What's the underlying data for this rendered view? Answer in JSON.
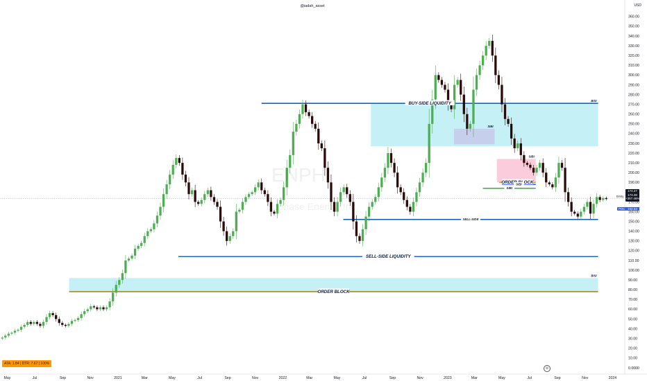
{
  "header": {
    "attribution": "@iadah_asset",
    "currency": "USD"
  },
  "watermark": {
    "ticker": "ENPH",
    "company": "Enphase Energy, Inc."
  },
  "indicator_badge": "ATA: 1.84 | DTR: 7.67 | 100%",
  "price_tag": {
    "symbol": "174.27",
    "price": "173.38",
    "change": "+357.46%",
    "time": "4:21h"
  },
  "entry_label": "Entry",
  "poc_tag": {
    "label": "POC",
    "value": "152.63"
  },
  "chart_data": {
    "type": "candlestick",
    "title": "",
    "y_axis": {
      "position": "right",
      "ticks": [
        0,
        10,
        20,
        30,
        40,
        50,
        60,
        70,
        80,
        90,
        100,
        110,
        120,
        130,
        140,
        150,
        160,
        170,
        180,
        190,
        200,
        210,
        220,
        230,
        240,
        250,
        260,
        270,
        280,
        290,
        300,
        310,
        320,
        330,
        340,
        350,
        360
      ],
      "tick_labels": [
        "0.0000",
        "10.00",
        "20.00",
        "30.00",
        "40.00",
        "50.00",
        "60.00",
        "70.00",
        "80.00",
        "90.00",
        "100.00",
        "110.00",
        "120.00",
        "130.00",
        "140.00",
        "150.00",
        "160.00",
        "170.00",
        "180.00",
        "190.00",
        "200.00",
        "210.00",
        "220.00",
        "230.00",
        "240.00",
        "250.00",
        "260.00",
        "270.00",
        "280.00",
        "290.00",
        "300.00",
        "310.00",
        "320.00",
        "330.00",
        "340.00",
        "350.00",
        "360.00"
      ],
      "range": [
        -5,
        367
      ]
    },
    "x_axis": {
      "range": [
        "2020-04-15",
        "2024-01-25"
      ],
      "ticks": [
        {
          "date": "2020-05-01",
          "label": "May"
        },
        {
          "date": "2020-07-01",
          "label": "Jul"
        },
        {
          "date": "2020-09-01",
          "label": "Sep"
        },
        {
          "date": "2020-11-01",
          "label": "Nov"
        },
        {
          "date": "2021-01-01",
          "label": "2021"
        },
        {
          "date": "2021-03-01",
          "label": "Mar"
        },
        {
          "date": "2021-05-01",
          "label": "May"
        },
        {
          "date": "2021-07-01",
          "label": "Jul"
        },
        {
          "date": "2021-09-01",
          "label": "Sep"
        },
        {
          "date": "2021-11-01",
          "label": "Nov"
        },
        {
          "date": "2022-01-01",
          "label": "2022"
        },
        {
          "date": "2022-03-01",
          "label": "Mar"
        },
        {
          "date": "2022-05-01",
          "label": "May"
        },
        {
          "date": "2022-07-01",
          "label": "Jul"
        },
        {
          "date": "2022-09-01",
          "label": "Sep"
        },
        {
          "date": "2022-11-01",
          "label": "Nov"
        },
        {
          "date": "2023-01-01",
          "label": "2023"
        },
        {
          "date": "2023-03-01",
          "label": "Mar"
        },
        {
          "date": "2023-05-01",
          "label": "May"
        },
        {
          "date": "2023-07-01",
          "label": "Jul"
        },
        {
          "date": "2023-09-01",
          "label": "Sep"
        },
        {
          "date": "2023-11-01",
          "label": "Nov"
        },
        {
          "date": "2024-01-01",
          "label": "2024"
        }
      ]
    },
    "candle_interval": "1 week",
    "close_series": {
      "start": "2020-04-20",
      "closes": [
        31,
        33,
        35,
        36,
        38,
        39,
        42,
        44,
        47,
        45,
        47,
        45,
        43,
        47,
        52,
        56,
        54,
        50,
        46,
        44,
        43,
        45,
        48,
        49,
        51,
        55,
        58,
        60,
        63,
        62,
        60,
        62,
        60,
        62,
        68,
        77,
        85,
        90,
        97,
        110,
        112,
        115,
        122,
        125,
        128,
        135,
        140,
        142,
        148,
        156,
        165,
        178,
        188,
        198,
        208,
        215,
        210,
        198,
        190,
        178,
        182,
        170,
        168,
        172,
        178,
        182,
        175,
        170,
        165,
        150,
        140,
        130,
        135,
        140,
        160,
        162,
        170,
        175,
        178,
        180,
        185,
        190,
        182,
        178,
        170,
        160,
        158,
        168,
        172,
        185,
        205,
        218,
        242,
        250,
        260,
        270,
        262,
        258,
        250,
        245,
        230,
        225,
        205,
        190,
        170,
        160,
        170,
        180,
        185,
        178,
        170,
        150,
        135,
        130,
        142,
        155,
        165,
        170,
        175,
        185,
        195,
        205,
        220,
        210,
        200,
        185,
        180,
        172,
        165,
        160,
        170,
        180,
        190,
        200,
        210,
        250,
        275,
        300,
        295,
        290,
        285,
        270,
        265,
        290,
        295,
        280,
        260,
        245,
        250,
        285,
        300,
        310,
        320,
        330,
        335,
        320,
        300,
        290,
        270,
        255,
        250,
        235,
        225,
        230,
        218,
        210,
        208,
        205,
        200,
        205,
        210,
        200,
        190,
        188,
        185,
        195,
        210,
        205,
        180,
        170,
        160,
        158,
        155,
        160,
        165,
        170,
        158,
        168,
        175,
        172,
        174,
        173
      ]
    },
    "annotations": [
      {
        "label": "BUY-SIDE LIQUIDITY",
        "type": "line",
        "y": 271,
        "from": "2021-11-15",
        "to": "2023-11-30",
        "color": "#1565c0"
      },
      {
        "label": "SELL-SIDE LIQUIDITY",
        "type": "line",
        "y": 114,
        "from": "2021-05-15",
        "to": "2023-11-30",
        "color": "#1565c0"
      },
      {
        "label": "SELL-SIDE",
        "type": "line",
        "y": 152,
        "from": "2022-05-15",
        "to": "2023-11-30",
        "color": "#1565c0"
      },
      {
        "label": "BISI",
        "type": "zone",
        "y": [
          227,
          271
        ],
        "from": "2022-07-15",
        "to": "2023-11-30",
        "color": "#b2ebf2"
      },
      {
        "label": "BISI",
        "type": "zone",
        "y": [
          78,
          92
        ],
        "from": "2020-09-15",
        "to": "2023-11-30",
        "color": "#b2ebf2"
      },
      {
        "label": "ORDER BLOCK",
        "type": "line",
        "y": 78,
        "from": "2020-09-15",
        "to": "2023-11-30",
        "color": "#b8860b"
      },
      {
        "label": "SIBI",
        "type": "zone",
        "y": [
          229,
          245
        ],
        "from": "2023-01-15",
        "to": "2023-04-15",
        "color": "#c5c6e8"
      },
      {
        "label": "SIBI",
        "type": "zone",
        "y": [
          190,
          214
        ],
        "from": "2023-04-20",
        "to": "2023-07-15",
        "color": "#f8bbd0"
      },
      {
        "label": "ORDER BLOCK",
        "type": "line",
        "y": 190,
        "from": "2023-04-25",
        "to": "2023-07-15",
        "color": "#ff9800"
      },
      {
        "label": "SIBI",
        "type": "line",
        "y": 188,
        "from": "2023-05-01",
        "to": "2023-07-15",
        "color": "#2962ff"
      },
      {
        "label": "SIBI",
        "type": "line",
        "y": 184,
        "from": "2023-03-20",
        "to": "2023-07-15",
        "color": "#4caf50"
      }
    ],
    "current_price": 173.38,
    "poc": 152.63,
    "grid": false,
    "legend": "none"
  }
}
